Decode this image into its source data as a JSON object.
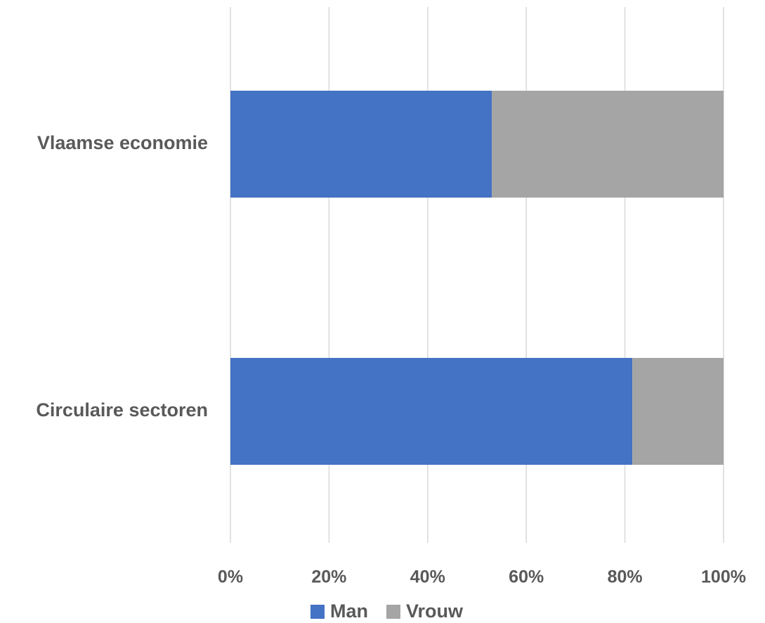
{
  "chart_data": {
    "type": "bar",
    "orientation": "horizontal",
    "stacked": true,
    "percent_stacked": true,
    "categories": [
      "Vlaamse economie",
      "Circulaire sectoren"
    ],
    "series": [
      {
        "name": "Man",
        "color": "#4472C4",
        "values": [
          53,
          81.5
        ]
      },
      {
        "name": "Vrouw",
        "color": "#A5A5A5",
        "values": [
          47,
          18.5
        ]
      }
    ],
    "xlim": [
      0,
      100
    ],
    "x_ticks": [
      0,
      20,
      40,
      60,
      80,
      100
    ],
    "x_tick_labels": [
      "0%",
      "20%",
      "40%",
      "60%",
      "80%",
      "100%"
    ],
    "title": "",
    "xlabel": "",
    "ylabel": "",
    "grid": true,
    "legend_position": "bottom",
    "grid_color": "#D9D9D9",
    "text_color": "#595959"
  }
}
